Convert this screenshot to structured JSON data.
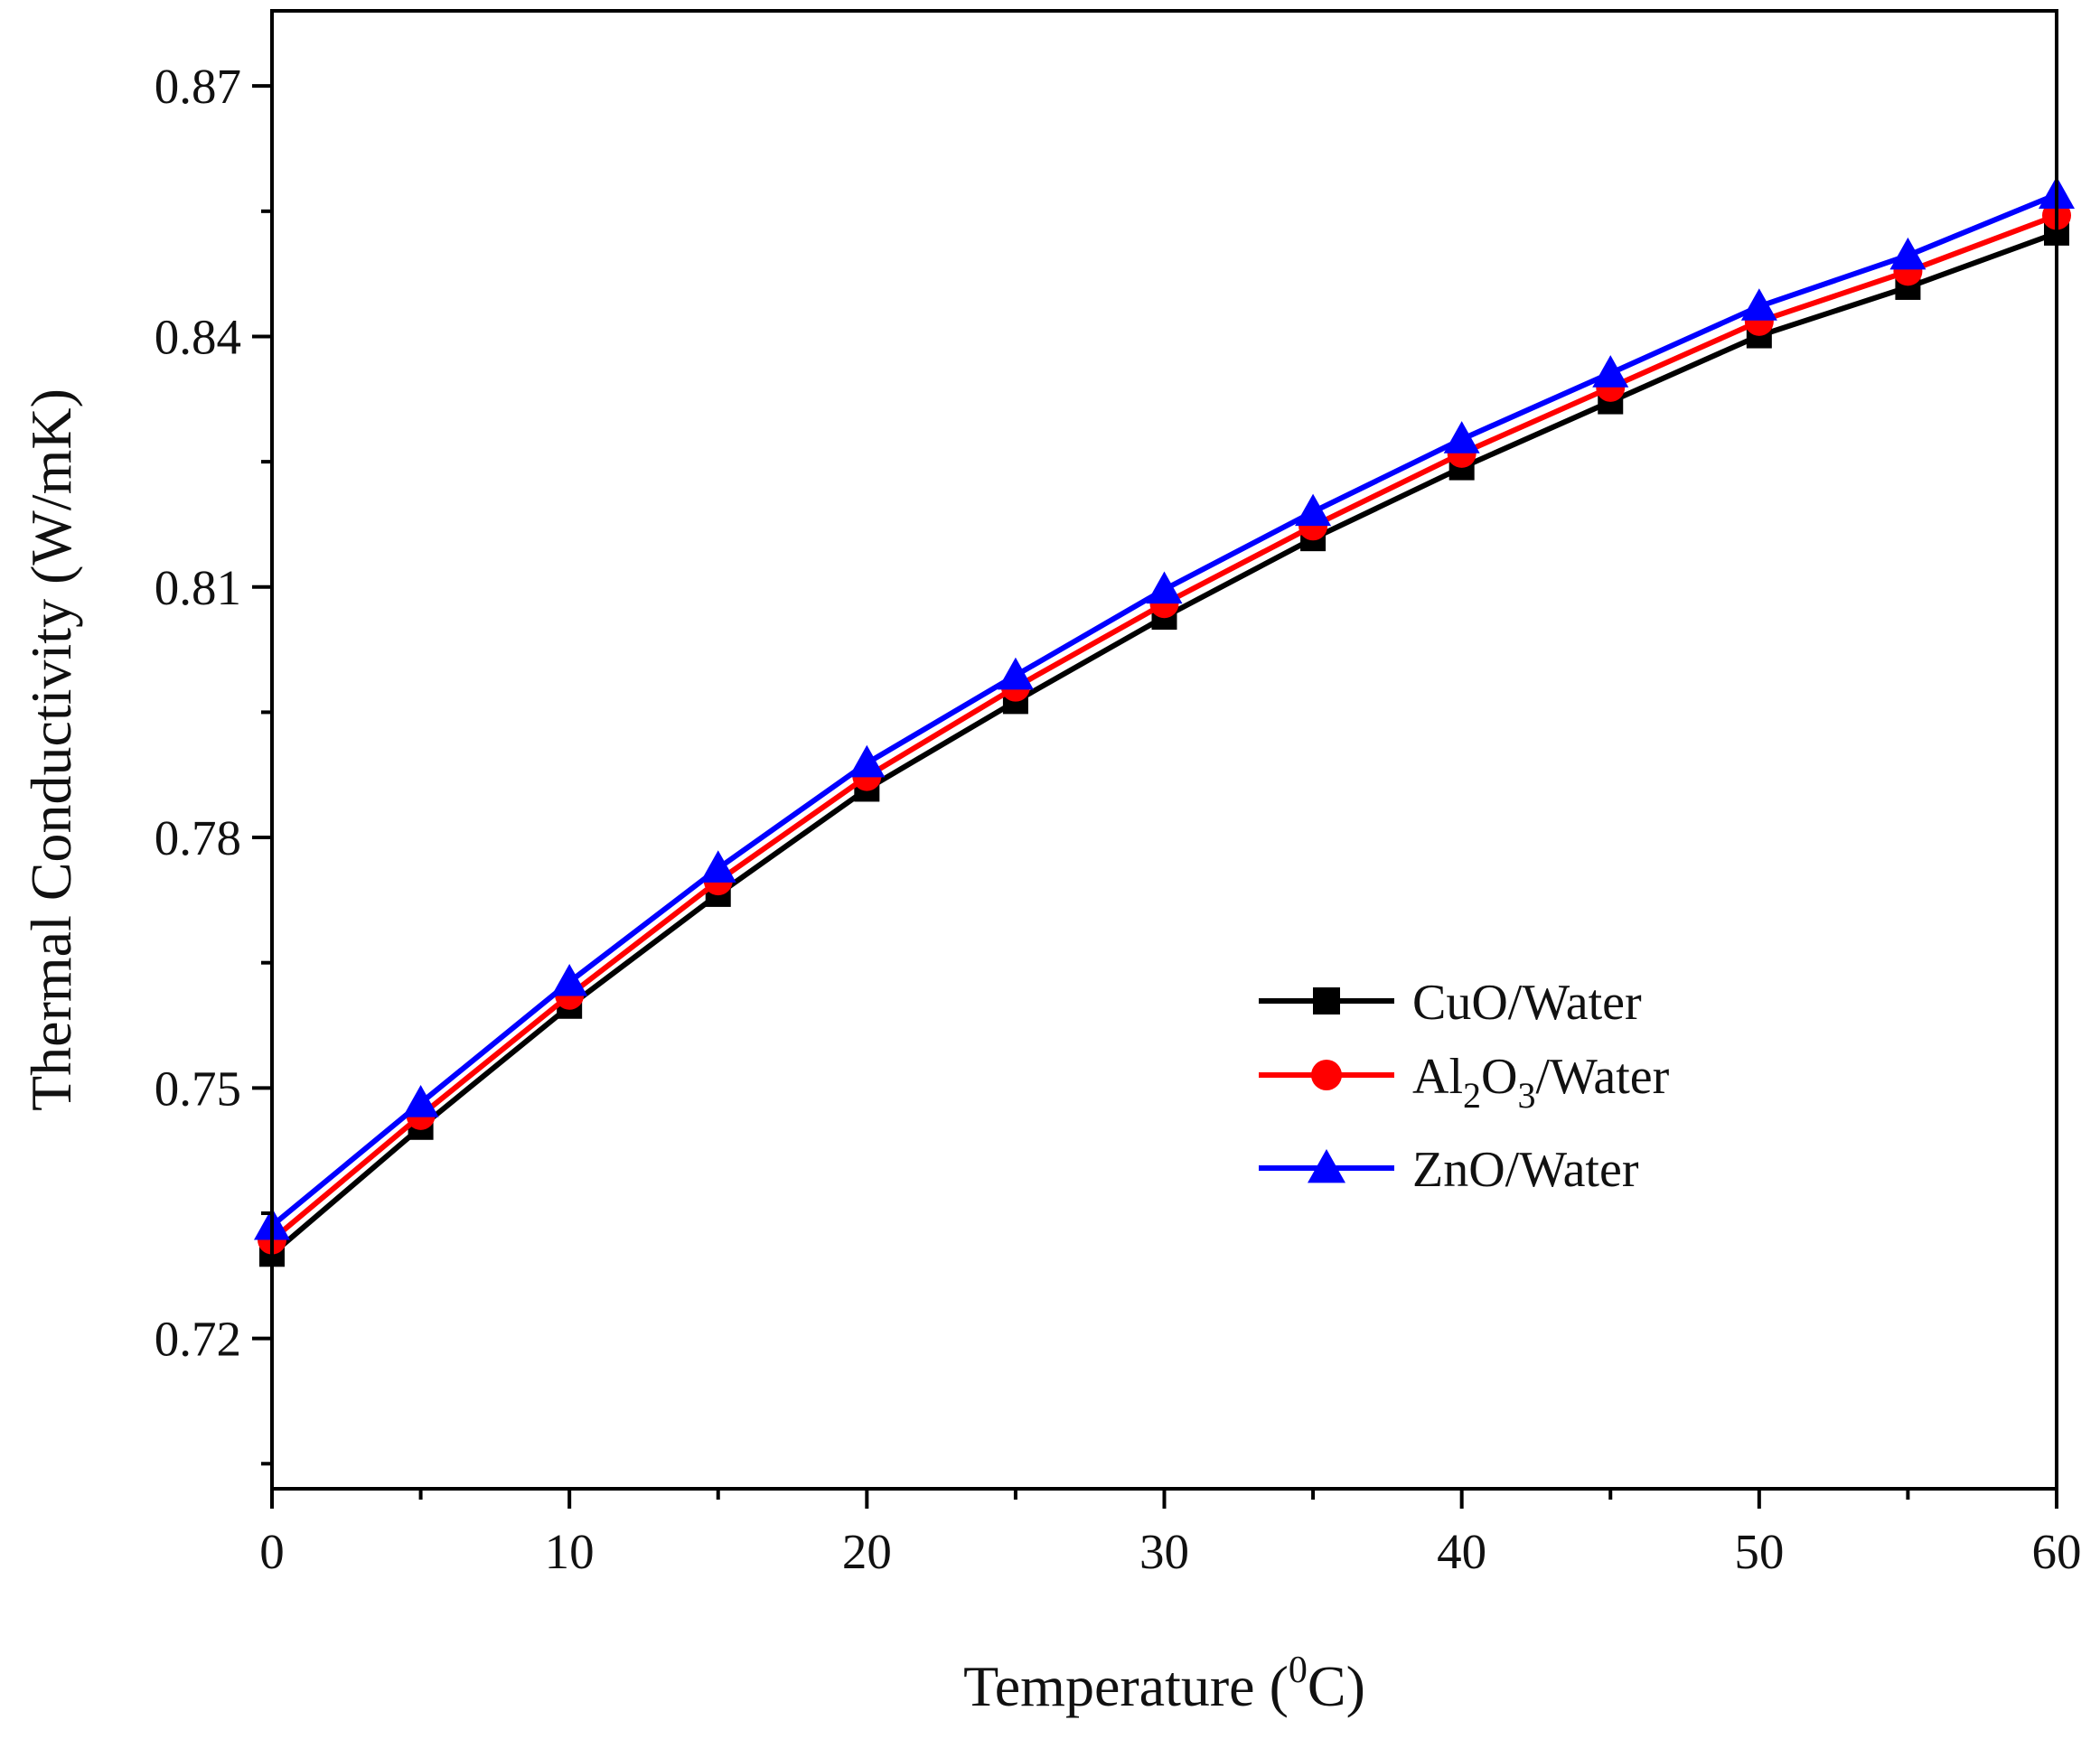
{
  "chart_data": {
    "type": "line",
    "title": "",
    "xlabel": {
      "main": "Temperature (",
      "sup": "0",
      "tail": "C)"
    },
    "ylabel": "Thermal Conductivity (W/mK)",
    "xlim": [
      0,
      60
    ],
    "ylim": [
      0.702,
      0.879
    ],
    "xticks": [
      0,
      10,
      20,
      30,
      40,
      50,
      60
    ],
    "xtick_labels": [
      "0",
      "10",
      "20",
      "30",
      "40",
      "50",
      "60"
    ],
    "xminor": [
      5,
      15,
      25,
      35,
      45,
      55
    ],
    "yticks": [
      0.72,
      0.75,
      0.78,
      0.81,
      0.84,
      0.87
    ],
    "ytick_labels": [
      "0.72",
      "0.75",
      "0.78",
      "0.81",
      "0.84",
      "0.87"
    ],
    "yminor": [
      0.705,
      0.735,
      0.765,
      0.795,
      0.825,
      0.855
    ],
    "grid": false,
    "legend_position": "center-right",
    "x": [
      0,
      5,
      10,
      15,
      20,
      25,
      30,
      35,
      40,
      45,
      50,
      55,
      60
    ],
    "series": [
      {
        "name": "CuO/Water",
        "label_parts": [
          [
            "CuO/Water",
            false
          ]
        ],
        "color": "#000000",
        "marker": "square",
        "values": [
          0.7301,
          0.7453,
          0.7598,
          0.7732,
          0.7858,
          0.7963,
          0.8064,
          0.8158,
          0.8243,
          0.8322,
          0.8401,
          0.8459,
          0.8524
        ]
      },
      {
        "name": "Al2O3/Water",
        "label_parts": [
          [
            "Al",
            false
          ],
          [
            "2",
            true
          ],
          [
            "O",
            false
          ],
          [
            "3",
            true
          ],
          [
            "/Water",
            false
          ]
        ],
        "color": "#ff0000",
        "marker": "circle",
        "values": [
          0.7318,
          0.7467,
          0.7611,
          0.7748,
          0.7873,
          0.798,
          0.808,
          0.8173,
          0.826,
          0.8339,
          0.8418,
          0.8478,
          0.8545
        ]
      },
      {
        "name": "ZnO/Water",
        "label_parts": [
          [
            "ZnO/Water",
            false
          ]
        ],
        "color": "#0000ff",
        "marker": "triangle",
        "values": [
          0.7335,
          0.7482,
          0.7627,
          0.7763,
          0.7889,
          0.7994,
          0.8097,
          0.819,
          0.8277,
          0.8356,
          0.8436,
          0.8497,
          0.857
        ]
      }
    ]
  }
}
